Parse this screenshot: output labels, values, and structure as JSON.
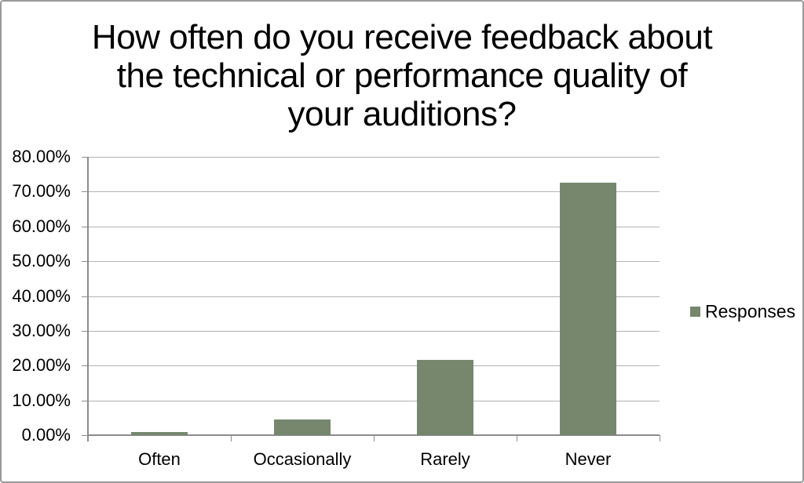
{
  "header": {
    "title_lines": [
      "How often do you receive feedback about",
      "the technical or performance quality of",
      "your auditions?"
    ]
  },
  "legend": {
    "label": "Responses"
  },
  "colors": {
    "bar": "#76876e",
    "gridline": "#b3b3b3",
    "axis": "#8c8c8c",
    "text": "#000000",
    "frame_border": "#9a9a9a"
  },
  "chart_data": {
    "type": "bar",
    "title": "How often do you receive feedback about the technical or performance quality of your auditions?",
    "categories": [
      "Often",
      "Occasionally",
      "Rarely",
      "Never"
    ],
    "series": [
      {
        "name": "Responses",
        "values": [
          0.98,
          4.41,
          21.57,
          72.55
        ]
      }
    ],
    "values": [
      0.98,
      4.41,
      21.57,
      72.55
    ],
    "value_unit": "%",
    "xlabel": "",
    "ylabel": "",
    "ylim": [
      0,
      80
    ],
    "y_tick_step": 10,
    "y_tick_labels": [
      "0.00%",
      "10.00%",
      "20.00%",
      "30.00%",
      "40.00%",
      "50.00%",
      "60.00%",
      "70.00%",
      "80.00%"
    ],
    "grid": "horizontal",
    "legend_position": "right",
    "legend_entries": [
      "Responses"
    ]
  }
}
